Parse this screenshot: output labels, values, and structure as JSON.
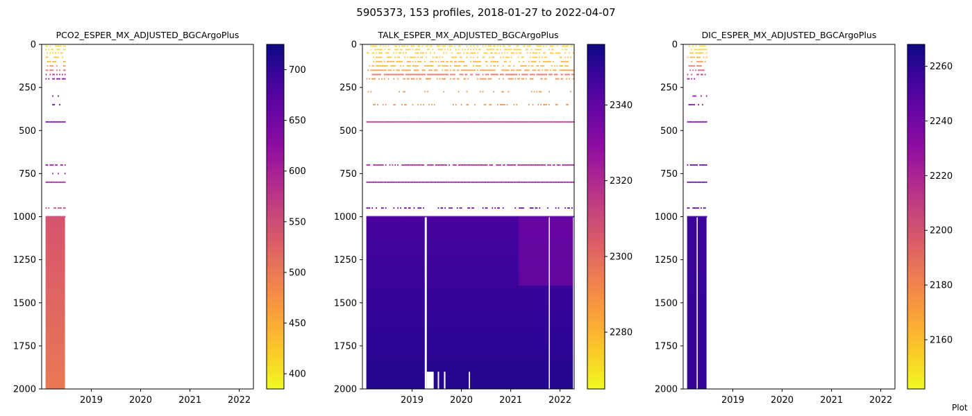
{
  "figure": {
    "suptitle": "5905373, 153 profiles, 2018-01-27 to 2022-04-07",
    "credit": "Plot"
  },
  "chart_data": [
    {
      "type": "heatmap",
      "title": "PCO2_ESPER_MX_ADJUSTED_BGCArgoPlus",
      "x_axis": {
        "type": "date",
        "range": [
          "2018-01-27",
          "2022-04-07"
        ],
        "ticks": [
          "2019",
          "2020",
          "2021",
          "2022"
        ]
      },
      "y_axis": {
        "inverted": true,
        "range": [
          2000,
          0
        ],
        "ticks": [
          0,
          250,
          500,
          750,
          1000,
          1250,
          1500,
          1750,
          2000
        ]
      },
      "colorbar": {
        "colormap": "plasma_r",
        "range": [
          385,
          725
        ],
        "ticks": [
          400,
          450,
          500,
          550,
          600,
          650,
          700
        ]
      },
      "data_coverage": {
        "date_range": [
          "2018-01-27",
          "2018-06-20"
        ]
      },
      "depth_levels": [
        {
          "depth": 10,
          "value": 410,
          "density": 0.6
        },
        {
          "depth": 30,
          "value": 415,
          "density": 0.6
        },
        {
          "depth": 50,
          "value": 420,
          "density": 0.55
        },
        {
          "depth": 75,
          "value": 430,
          "density": 0.55
        },
        {
          "depth": 100,
          "value": 445,
          "density": 0.5
        },
        {
          "depth": 125,
          "value": 470,
          "density": 0.5
        },
        {
          "depth": 150,
          "value": 520,
          "density": 0.6
        },
        {
          "depth": 175,
          "value": 600,
          "density": 0.5
        },
        {
          "depth": 200,
          "value": 640,
          "density": 0.45
        },
        {
          "depth": 225,
          "value": 660,
          "density": 0.2
        },
        {
          "depth": 300,
          "value": 670,
          "density": 0.2
        },
        {
          "depth": 350,
          "value": 680,
          "density": 0.3
        },
        {
          "depth": 450,
          "value": 650,
          "density": 1.0
        },
        {
          "depth": 700,
          "value": 620,
          "density": 0.8
        },
        {
          "depth": 750,
          "value": 620,
          "density": 0.2
        },
        {
          "depth": 800,
          "value": 610,
          "density": 1.0
        },
        {
          "depth": 950,
          "value": 560,
          "density": 0.4
        },
        {
          "depth": 1000,
          "value": 555,
          "density": 1.0
        }
      ],
      "deep_block": {
        "depth_from": 1000,
        "depth_to": 2000,
        "value_top": 540,
        "value_bottom": 500
      }
    },
    {
      "type": "heatmap",
      "title": "TALK_ESPER_MX_ADJUSTED_BGCArgoPlus",
      "x_axis": {
        "type": "date",
        "range": [
          "2018-01-27",
          "2022-04-07"
        ],
        "ticks": [
          "2019",
          "2020",
          "2021",
          "2022"
        ]
      },
      "y_axis": {
        "inverted": true,
        "range": [
          2000,
          0
        ],
        "ticks": [
          0,
          250,
          500,
          750,
          1000,
          1250,
          1500,
          1750,
          2000
        ]
      },
      "colorbar": {
        "colormap": "plasma_r",
        "range": [
          2265,
          2356
        ],
        "ticks": [
          2280,
          2300,
          2320,
          2340
        ]
      },
      "data_coverage": {
        "date_range": [
          "2018-01-27",
          "2022-04-07"
        ]
      },
      "depth_levels": [
        {
          "depth": 10,
          "value": 2272,
          "density": 0.5
        },
        {
          "depth": 30,
          "value": 2274,
          "density": 0.5
        },
        {
          "depth": 50,
          "value": 2276,
          "density": 0.5
        },
        {
          "depth": 75,
          "value": 2276,
          "density": 0.5
        },
        {
          "depth": 100,
          "value": 2280,
          "density": 0.6
        },
        {
          "depth": 125,
          "value": 2280,
          "density": 0.6
        },
        {
          "depth": 150,
          "value": 2286,
          "density": 0.8
        },
        {
          "depth": 175,
          "value": 2300,
          "density": 0.8
        },
        {
          "depth": 200,
          "value": 2290,
          "density": 0.5
        },
        {
          "depth": 275,
          "value": 2290,
          "density": 0.15
        },
        {
          "depth": 350,
          "value": 2290,
          "density": 0.3
        },
        {
          "depth": 450,
          "value": 2318,
          "density": 1.0
        },
        {
          "depth": 700,
          "value": 2322,
          "density": 0.8
        },
        {
          "depth": 800,
          "value": 2326,
          "density": 1.0
        },
        {
          "depth": 950,
          "value": 2340,
          "density": 0.3
        },
        {
          "depth": 1000,
          "value": 2342,
          "density": 1.0
        }
      ],
      "deep_block": {
        "depth_from": 1000,
        "depth_to": 2000,
        "value_top": 2345,
        "value_bottom": 2352
      },
      "deep_anomaly": {
        "date_range": [
          "2021-03-01",
          "2022-04-07"
        ],
        "depth_range": [
          1000,
          1400
        ],
        "value": 2332
      },
      "gaps": [
        {
          "date_range": [
            "2019-04-05",
            "2019-04-20"
          ],
          "depth_range": [
            1000,
            2000
          ]
        },
        {
          "date_range": [
            "2019-04-20",
            "2019-06-10"
          ],
          "depth_range": [
            1900,
            2000
          ]
        },
        {
          "date_range": [
            "2019-07-10",
            "2019-07-20"
          ],
          "depth_range": [
            1900,
            2000
          ]
        },
        {
          "date_range": [
            "2019-08-25",
            "2019-09-05"
          ],
          "depth_range": [
            1900,
            2000
          ]
        },
        {
          "date_range": [
            "2020-02-25",
            "2020-03-05"
          ],
          "depth_range": [
            1900,
            2000
          ]
        },
        {
          "date_range": [
            "2021-10-10",
            "2021-10-17"
          ],
          "depth_range": [
            1000,
            2000
          ]
        }
      ]
    },
    {
      "type": "heatmap",
      "title": "DIC_ESPER_MX_ADJUSTED_BGCArgoPlus",
      "x_axis": {
        "type": "date",
        "range": [
          "2018-01-27",
          "2022-04-07"
        ],
        "ticks": [
          "2019",
          "2020",
          "2021",
          "2022"
        ]
      },
      "y_axis": {
        "inverted": true,
        "range": [
          2000,
          0
        ],
        "ticks": [
          0,
          250,
          500,
          750,
          1000,
          1250,
          1500,
          1750,
          2000
        ]
      },
      "colorbar": {
        "colormap": "plasma_r",
        "range": [
          2142,
          2268
        ],
        "ticks": [
          2160,
          2180,
          2200,
          2220,
          2240,
          2260
        ]
      },
      "data_coverage": {
        "date_range": [
          "2018-01-27",
          "2018-06-20"
        ]
      },
      "depth_levels": [
        {
          "depth": 10,
          "value": 2150,
          "density": 0.6
        },
        {
          "depth": 30,
          "value": 2152,
          "density": 0.6
        },
        {
          "depth": 50,
          "value": 2158,
          "density": 0.55
        },
        {
          "depth": 75,
          "value": 2165,
          "density": 0.55
        },
        {
          "depth": 100,
          "value": 2175,
          "density": 0.5
        },
        {
          "depth": 125,
          "value": 2185,
          "density": 0.5
        },
        {
          "depth": 150,
          "value": 2200,
          "density": 0.6
        },
        {
          "depth": 175,
          "value": 2215,
          "density": 0.5
        },
        {
          "depth": 200,
          "value": 2225,
          "density": 0.45
        },
        {
          "depth": 300,
          "value": 2232,
          "density": 0.2
        },
        {
          "depth": 350,
          "value": 2235,
          "density": 0.3
        },
        {
          "depth": 450,
          "value": 2240,
          "density": 1.0
        },
        {
          "depth": 700,
          "value": 2245,
          "density": 0.8
        },
        {
          "depth": 800,
          "value": 2248,
          "density": 1.0
        },
        {
          "depth": 950,
          "value": 2252,
          "density": 0.4
        },
        {
          "depth": 1000,
          "value": 2255,
          "density": 1.0
        }
      ],
      "deep_block": {
        "depth_from": 1000,
        "depth_to": 2000,
        "value_top": 2256,
        "value_bottom": 2258
      },
      "gaps": [
        {
          "date_range": [
            "2018-04-08",
            "2018-04-14"
          ],
          "depth_range": [
            1000,
            2000
          ]
        }
      ]
    }
  ]
}
